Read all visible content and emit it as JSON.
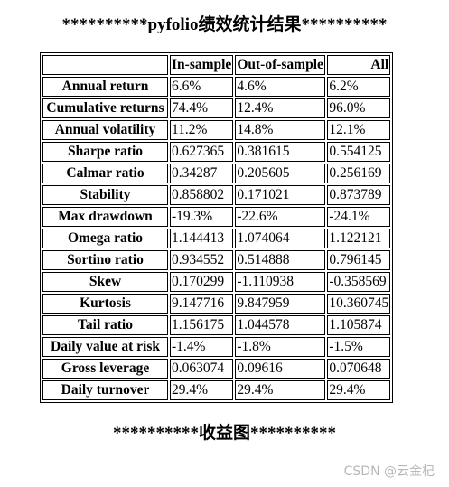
{
  "title": "**********pyfolio绩效统计结果**********",
  "table": {
    "columns": [
      "",
      "In-sample",
      "Out-of-sample",
      "All"
    ],
    "rows": [
      {
        "label": "Annual return",
        "values": [
          "6.6%",
          "4.6%",
          "6.2%"
        ]
      },
      {
        "label": "Cumulative returns",
        "values": [
          "74.4%",
          "12.4%",
          "96.0%"
        ]
      },
      {
        "label": "Annual volatility",
        "values": [
          "11.2%",
          "14.8%",
          "12.1%"
        ]
      },
      {
        "label": "Sharpe ratio",
        "values": [
          "0.627365",
          "0.381615",
          "0.554125"
        ]
      },
      {
        "label": "Calmar ratio",
        "values": [
          "0.34287",
          "0.205605",
          "0.256169"
        ]
      },
      {
        "label": "Stability",
        "values": [
          "0.858802",
          "0.171021",
          "0.873789"
        ]
      },
      {
        "label": "Max drawdown",
        "values": [
          "-19.3%",
          "-22.6%",
          "-24.1%"
        ]
      },
      {
        "label": "Omega ratio",
        "values": [
          "1.144413",
          "1.074064",
          "1.122121"
        ]
      },
      {
        "label": "Sortino ratio",
        "values": [
          "0.934552",
          "0.514888",
          "0.796145"
        ]
      },
      {
        "label": "Skew",
        "values": [
          "0.170299",
          "-1.110938",
          "-0.358569"
        ]
      },
      {
        "label": "Kurtosis",
        "values": [
          "9.147716",
          "9.847959",
          "10.360745"
        ]
      },
      {
        "label": "Tail ratio",
        "values": [
          "1.156175",
          "1.044578",
          "1.105874"
        ]
      },
      {
        "label": "Daily value at risk",
        "values": [
          "-1.4%",
          "-1.8%",
          "-1.5%"
        ]
      },
      {
        "label": "Gross leverage",
        "values": [
          "0.063074",
          "0.09616",
          "0.070648"
        ]
      },
      {
        "label": "Daily turnover",
        "values": [
          "29.4%",
          "29.4%",
          "29.4%"
        ]
      }
    ]
  },
  "section2_title": "**********收益图**********",
  "watermark": "CSDN @云金杞"
}
